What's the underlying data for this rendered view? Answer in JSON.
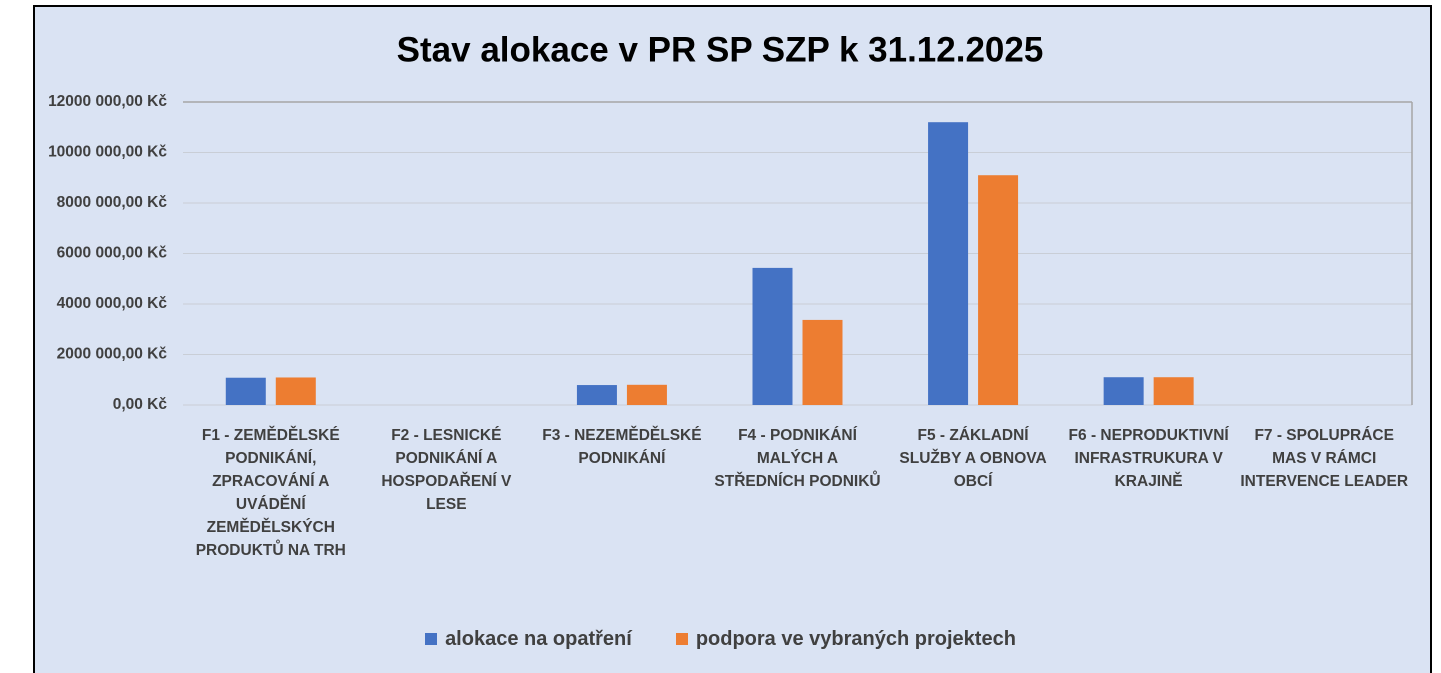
{
  "chart_data": {
    "type": "bar",
    "title": "Stav alokace v PR SP SZP k 31.12.2025",
    "categories": [
      "F1 - ZEMĚDĚLSKÉ PODNIKÁNÍ, ZPRACOVÁNÍ A UVÁDĚNÍ ZEMĚDĚLSKÝCH PRODUKTŮ NA TRH",
      "F2 - LESNICKÉ PODNIKÁNÍ A HOSPODAŘENÍ V LESE",
      "F3 - NEZEMĚDĚLSKÉ PODNIKÁNÍ",
      "F4 - PODNIKÁNÍ MALÝCH A STŘEDNÍCH PODNIKŮ",
      "F5 - ZÁKLADNÍ SLUŽBY A OBNOVA OBCÍ",
      "F6 - NEPRODUKTIVNÍ INFRASTRUKURA V KRAJINĚ",
      "F7 - SPOLUPRÁCE MAS V RÁMCI INTERVENCE LEADER"
    ],
    "series": [
      {
        "name": "alokace na opatření",
        "color": "#4472c4",
        "values": [
          1080000,
          0,
          790000,
          5430000,
          11200000,
          1100000,
          0
        ]
      },
      {
        "name": "podpora ve vybraných projektech",
        "color": "#ed7d31",
        "values": [
          1090000,
          0,
          800000,
          3370000,
          9100000,
          1100000,
          0
        ]
      }
    ],
    "ylim": [
      0,
      12000000
    ],
    "yticks": [
      {
        "value": 0,
        "label": "0,00 Kč"
      },
      {
        "value": 2000000,
        "label": "2000 000,00 Kč"
      },
      {
        "value": 4000000,
        "label": "4000 000,00 Kč"
      },
      {
        "value": 6000000,
        "label": "6000 000,00 Kč"
      },
      {
        "value": 8000000,
        "label": "8000 000,00 Kč"
      },
      {
        "value": 10000000,
        "label": "10000 000,00 Kč"
      },
      {
        "value": 12000000,
        "label": "12000 000,00 Kč"
      }
    ],
    "grid": true,
    "legend": "bottom"
  }
}
